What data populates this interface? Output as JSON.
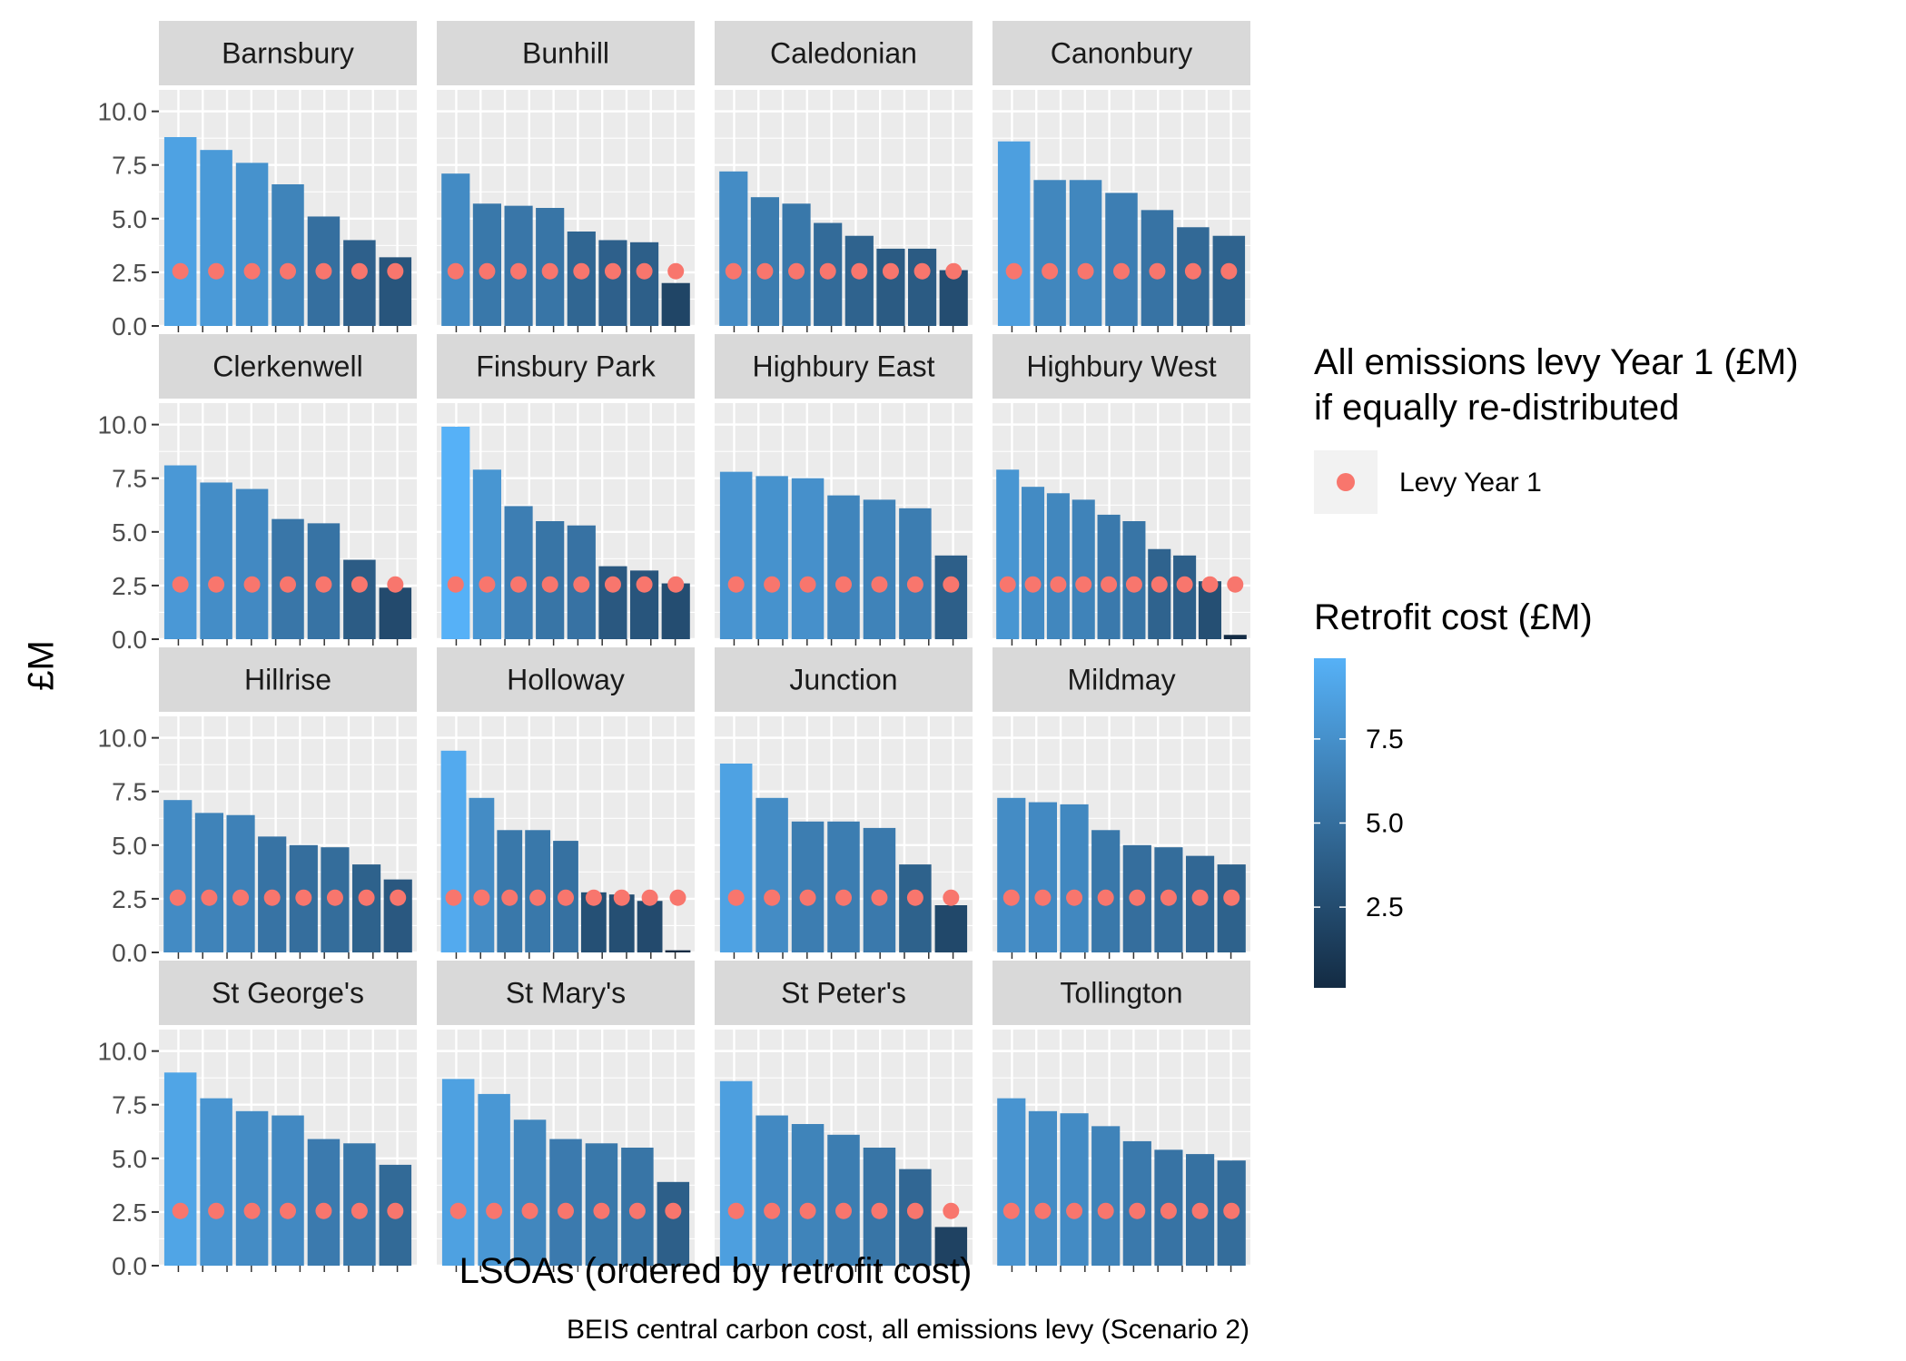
{
  "chart_data": {
    "type": "bar",
    "facet_layout": "4x4 grid",
    "xlabel": "LSOAs (ordered by retrofit cost)",
    "ylabel": "£M",
    "caption": "BEIS central carbon cost, all emissions levy (Scenario 2)",
    "ylim": [
      0,
      11
    ],
    "yticks": [
      "0.0",
      "2.5",
      "5.0",
      "7.5",
      "10.0"
    ],
    "ytick_values": [
      0,
      2.5,
      5,
      7.5,
      10
    ],
    "grid": true,
    "point_legend": {
      "title_line1": "All emissions levy Year 1 (£M)",
      "title_line2": "if equally re-distributed",
      "label": "Levy Year 1",
      "color": "#F8766D"
    },
    "color_legend": {
      "title": "Retrofit cost (£M)",
      "ticks": [
        "2.5",
        "5.0",
        "7.5"
      ],
      "tick_values": [
        2.5,
        5,
        7.5
      ],
      "range": [
        0.1,
        9.9
      ],
      "low_color": "#132B43",
      "high_color": "#56B1F7"
    },
    "levy_year1": 2.55,
    "facets": [
      {
        "name": "Barnsbury",
        "values": [
          8.8,
          8.2,
          7.6,
          6.6,
          5.1,
          4.0,
          3.2
        ]
      },
      {
        "name": "Bunhill",
        "values": [
          7.1,
          5.7,
          5.6,
          5.5,
          4.4,
          4.0,
          3.9,
          2.0
        ]
      },
      {
        "name": "Caledonian",
        "values": [
          7.2,
          6.0,
          5.7,
          4.8,
          4.2,
          3.6,
          3.6,
          2.6
        ]
      },
      {
        "name": "Canonbury",
        "values": [
          8.6,
          6.8,
          6.8,
          6.2,
          5.4,
          4.6,
          4.2
        ]
      },
      {
        "name": "Clerkenwell",
        "values": [
          8.1,
          7.3,
          7.0,
          5.6,
          5.4,
          3.7,
          2.4
        ]
      },
      {
        "name": "Finsbury Park",
        "values": [
          9.9,
          7.9,
          6.2,
          5.5,
          5.3,
          3.4,
          3.2,
          2.6
        ]
      },
      {
        "name": "Highbury East",
        "values": [
          7.8,
          7.6,
          7.5,
          6.7,
          6.5,
          6.1,
          3.9
        ]
      },
      {
        "name": "Highbury West",
        "values": [
          7.9,
          7.1,
          6.8,
          6.5,
          5.8,
          5.5,
          4.2,
          3.9,
          2.7,
          0.2
        ]
      },
      {
        "name": "Hillrise",
        "values": [
          7.1,
          6.5,
          6.4,
          5.4,
          5.0,
          4.9,
          4.1,
          3.4
        ]
      },
      {
        "name": "Holloway",
        "values": [
          9.4,
          7.2,
          5.7,
          5.7,
          5.2,
          2.8,
          2.7,
          2.4,
          0.1
        ]
      },
      {
        "name": "Junction",
        "values": [
          8.8,
          7.2,
          6.1,
          6.1,
          5.8,
          4.1,
          2.2
        ]
      },
      {
        "name": "Mildmay",
        "values": [
          7.2,
          7.0,
          6.9,
          5.7,
          5.0,
          4.9,
          4.5,
          4.1
        ]
      },
      {
        "name": "St George's",
        "values": [
          9.0,
          7.8,
          7.2,
          7.0,
          5.9,
          5.7,
          4.7
        ]
      },
      {
        "name": "St Mary's",
        "values": [
          8.7,
          8.0,
          6.8,
          5.9,
          5.7,
          5.5,
          3.9
        ]
      },
      {
        "name": "St Peter's",
        "values": [
          8.6,
          7.0,
          6.6,
          6.1,
          5.5,
          4.5,
          1.8
        ]
      },
      {
        "name": "Tollington",
        "values": [
          7.8,
          7.2,
          7.1,
          6.5,
          5.8,
          5.4,
          5.2,
          4.9
        ]
      }
    ]
  }
}
